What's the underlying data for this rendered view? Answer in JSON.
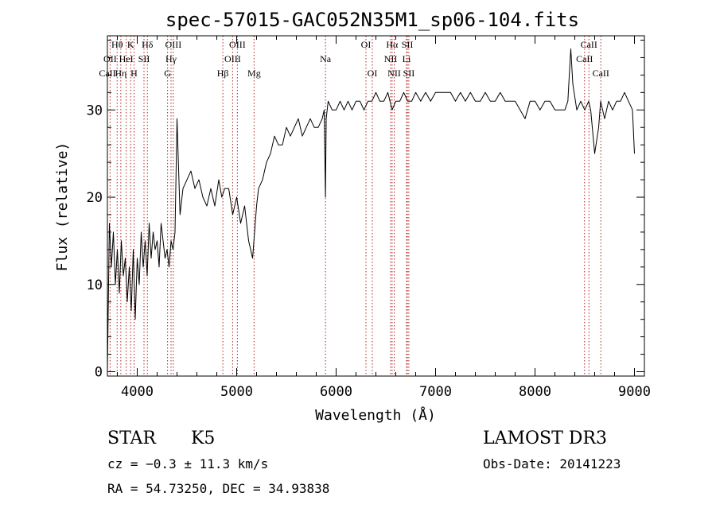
{
  "chart_data": {
    "type": "line",
    "title": "spec-57015-GAC052N35M1_sp06-104.fits",
    "xlabel": "Wavelength (Å)",
    "ylabel": "Flux (relative)",
    "xlim": [
      3700,
      9100
    ],
    "ylim": [
      -0.5,
      38.5
    ],
    "x_ticks": [
      4000,
      5000,
      6000,
      7000,
      8000,
      9000
    ],
    "y_ticks": [
      0,
      10,
      20,
      30
    ],
    "grid": false,
    "series": [
      {
        "color": "#000000",
        "x": [
          3700,
          3720,
          3740,
          3760,
          3780,
          3800,
          3820,
          3840,
          3860,
          3880,
          3900,
          3920,
          3940,
          3960,
          3980,
          4000,
          4020,
          4040,
          4060,
          4080,
          4100,
          4120,
          4140,
          4160,
          4180,
          4200,
          4220,
          4240,
          4260,
          4280,
          4300,
          4320,
          4340,
          4360,
          4380,
          4400,
          4430,
          4460,
          4500,
          4540,
          4580,
          4620,
          4660,
          4700,
          4740,
          4780,
          4820,
          4850,
          4880,
          4920,
          4960,
          5000,
          5040,
          5080,
          5120,
          5160,
          5180,
          5200,
          5220,
          5260,
          5300,
          5340,
          5380,
          5420,
          5460,
          5500,
          5540,
          5580,
          5620,
          5660,
          5700,
          5740,
          5780,
          5820,
          5860,
          5880,
          5893,
          5900,
          5920,
          5960,
          6000,
          6040,
          6080,
          6120,
          6160,
          6200,
          6240,
          6280,
          6320,
          6360,
          6400,
          6440,
          6480,
          6520,
          6563,
          6600,
          6640,
          6680,
          6720,
          6760,
          6800,
          6850,
          6900,
          6950,
          7000,
          7050,
          7100,
          7150,
          7200,
          7250,
          7300,
          7350,
          7400,
          7450,
          7500,
          7550,
          7600,
          7650,
          7700,
          7750,
          7800,
          7850,
          7900,
          7950,
          8000,
          8050,
          8100,
          8150,
          8200,
          8250,
          8300,
          8330,
          8345,
          8360,
          8380,
          8420,
          8460,
          8500,
          8540,
          8560,
          8600,
          8640,
          8660,
          8700,
          8740,
          8780,
          8820,
          8860,
          8900,
          8940,
          8980,
          9000
        ],
        "y": [
          0,
          17,
          12,
          16,
          10,
          14,
          9,
          15,
          11,
          13,
          8,
          12,
          7,
          14,
          6,
          13,
          10,
          16,
          12,
          15,
          11,
          17,
          13,
          16,
          14,
          15,
          12,
          17,
          15,
          13,
          14,
          12,
          15,
          14,
          16,
          29,
          18,
          21,
          22,
          23,
          21,
          22,
          20,
          19,
          21,
          19,
          22,
          20,
          21,
          21,
          18,
          20,
          17,
          19,
          15,
          13,
          16,
          19,
          21,
          22,
          24,
          25,
          27,
          26,
          26,
          28,
          27,
          28,
          29,
          27,
          28,
          29,
          28,
          28,
          29,
          30,
          20,
          29,
          31,
          30,
          30,
          31,
          30,
          31,
          30,
          31,
          31,
          30,
          31,
          31,
          32,
          31,
          31,
          32,
          30,
          31,
          31,
          32,
          31,
          31,
          32,
          31,
          32,
          31,
          32,
          32,
          32,
          32,
          31,
          32,
          31,
          32,
          31,
          31,
          32,
          31,
          31,
          32,
          31,
          31,
          31,
          30,
          29,
          31,
          31,
          30,
          31,
          31,
          30,
          30,
          30,
          31,
          34,
          37,
          33,
          30,
          31,
          30,
          31,
          30,
          25,
          28,
          31,
          29,
          31,
          30,
          31,
          31,
          32,
          31,
          30,
          25
        ]
      }
    ],
    "line_ids": [
      {
        "name": "Hθ",
        "x": 3798,
        "row": 0
      },
      {
        "name": "OII",
        "x": 3727,
        "row": 1
      },
      {
        "name": "CaII",
        "x": 3700,
        "row": 2
      },
      {
        "name": "K",
        "x": 3934,
        "row": 0
      },
      {
        "name": "HeI",
        "x": 3889,
        "row": 1
      },
      {
        "name": "Hη",
        "x": 3835,
        "row": 2
      },
      {
        "name": "Hδ",
        "x": 4102,
        "row": 0
      },
      {
        "name": "SII",
        "x": 4068,
        "row": 1
      },
      {
        "name": "H",
        "x": 3968,
        "row": 2
      },
      {
        "name": "OIII",
        "x": 4363,
        "row": 0
      },
      {
        "name": "Hγ",
        "x": 4340,
        "row": 1
      },
      {
        "name": "G",
        "x": 4305,
        "row": 2
      },
      {
        "name": "OIII",
        "x": 5007,
        "row": 0
      },
      {
        "name": "OIII",
        "x": 4959,
        "row": 1
      },
      {
        "name": "Hβ",
        "x": 4861,
        "row": 2
      },
      {
        "name": "Mg",
        "x": 5175,
        "row": 2
      },
      {
        "name": "Na",
        "x": 5893,
        "row": 1
      },
      {
        "name": "OI",
        "x": 6300,
        "row": 0
      },
      {
        "name": "OI",
        "x": 6364,
        "row": 2
      },
      {
        "name": "Hα",
        "x": 6563,
        "row": 0
      },
      {
        "name": "SII",
        "x": 6716,
        "row": 0
      },
      {
        "name": "NII",
        "x": 6548,
        "row": 1
      },
      {
        "name": "Li",
        "x": 6708,
        "row": 1
      },
      {
        "name": "NII",
        "x": 6584,
        "row": 2
      },
      {
        "name": "SII",
        "x": 6731,
        "row": 2
      },
      {
        "name": "CaII",
        "x": 8542,
        "row": 0
      },
      {
        "name": "CaII",
        "x": 8498,
        "row": 1
      },
      {
        "name": "CaII",
        "x": 8662,
        "row": 2
      }
    ]
  },
  "info": {
    "class_label": "STAR",
    "subclass": "K5",
    "survey": "LAMOST DR3",
    "cz": "cz = −0.3 ± 11.3 km/s",
    "obs_date": "Obs-Date: 20141223",
    "coords": "RA =  54.73250, DEC =  34.93838"
  }
}
